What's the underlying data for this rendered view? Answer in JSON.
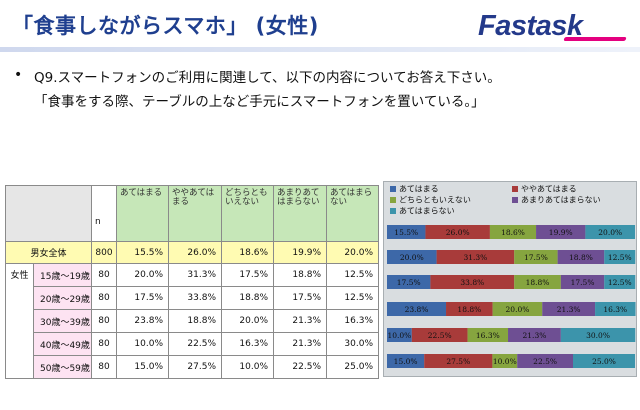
{
  "header": {
    "title": "「食事しながらスマホ」 (女性)",
    "logo": "Fastask"
  },
  "question": {
    "bullet": "•",
    "line1": "Q9.スマートフォンのご利用に関連して、以下の内容についてお答え下さい。",
    "line2": "「食事をする際、テーブルの上など手元にスマートフォンを置いている。」"
  },
  "table": {
    "n_header": "n",
    "column_headers": [
      "あてはまる",
      "ややあてはまる",
      "どちらともいえない",
      "あまりあてはまらない",
      "あてはまらない"
    ],
    "group_label": "女性",
    "rows": [
      {
        "label": "男女全体",
        "n": "800",
        "values": [
          "15.5%",
          "26.0%",
          "18.6%",
          "19.9%",
          "20.0%"
        ]
      },
      {
        "label": "15歳～19歳",
        "n": "80",
        "values": [
          "20.0%",
          "31.3%",
          "17.5%",
          "18.8%",
          "12.5%"
        ]
      },
      {
        "label": "20歳～29歳",
        "n": "80",
        "values": [
          "17.5%",
          "33.8%",
          "18.8%",
          "17.5%",
          "12.5%"
        ]
      },
      {
        "label": "30歳～39歳",
        "n": "80",
        "values": [
          "23.8%",
          "18.8%",
          "20.0%",
          "21.3%",
          "16.3%"
        ]
      },
      {
        "label": "40歳～49歳",
        "n": "80",
        "values": [
          "10.0%",
          "22.5%",
          "16.3%",
          "21.3%",
          "30.0%"
        ]
      },
      {
        "label": "50歳～59歳",
        "n": "80",
        "values": [
          "15.0%",
          "27.5%",
          "10.0%",
          "22.5%",
          "25.0%"
        ]
      }
    ]
  },
  "chart_data": {
    "type": "bar",
    "stacked": true,
    "orientation": "horizontal",
    "percent": true,
    "xlim": [
      0,
      100
    ],
    "grid": false,
    "legend": "top",
    "categories": [
      "男女全体",
      "15歳～19歳",
      "20歳～29歳",
      "30歳～39歳",
      "40歳～49歳",
      "50歳～59歳"
    ],
    "series": [
      {
        "name": "あてはまる",
        "color": "#3d68a8",
        "values": [
          15.5,
          20.0,
          17.5,
          23.8,
          10.0,
          15.0
        ]
      },
      {
        "name": "ややあてはまる",
        "color": "#a83b3a",
        "values": [
          26.0,
          31.3,
          33.8,
          18.8,
          22.5,
          27.5
        ]
      },
      {
        "name": "どちらともいえない",
        "color": "#86a53f",
        "values": [
          18.6,
          17.5,
          18.8,
          20.0,
          16.3,
          10.0
        ]
      },
      {
        "name": "あまりあてはまらない",
        "color": "#6e4f93",
        "values": [
          19.9,
          18.8,
          17.5,
          21.3,
          21.3,
          22.5
        ]
      },
      {
        "name": "あてはまらない",
        "color": "#3c94ab",
        "values": [
          20.0,
          12.5,
          12.5,
          16.3,
          30.0,
          25.0
        ]
      }
    ]
  }
}
